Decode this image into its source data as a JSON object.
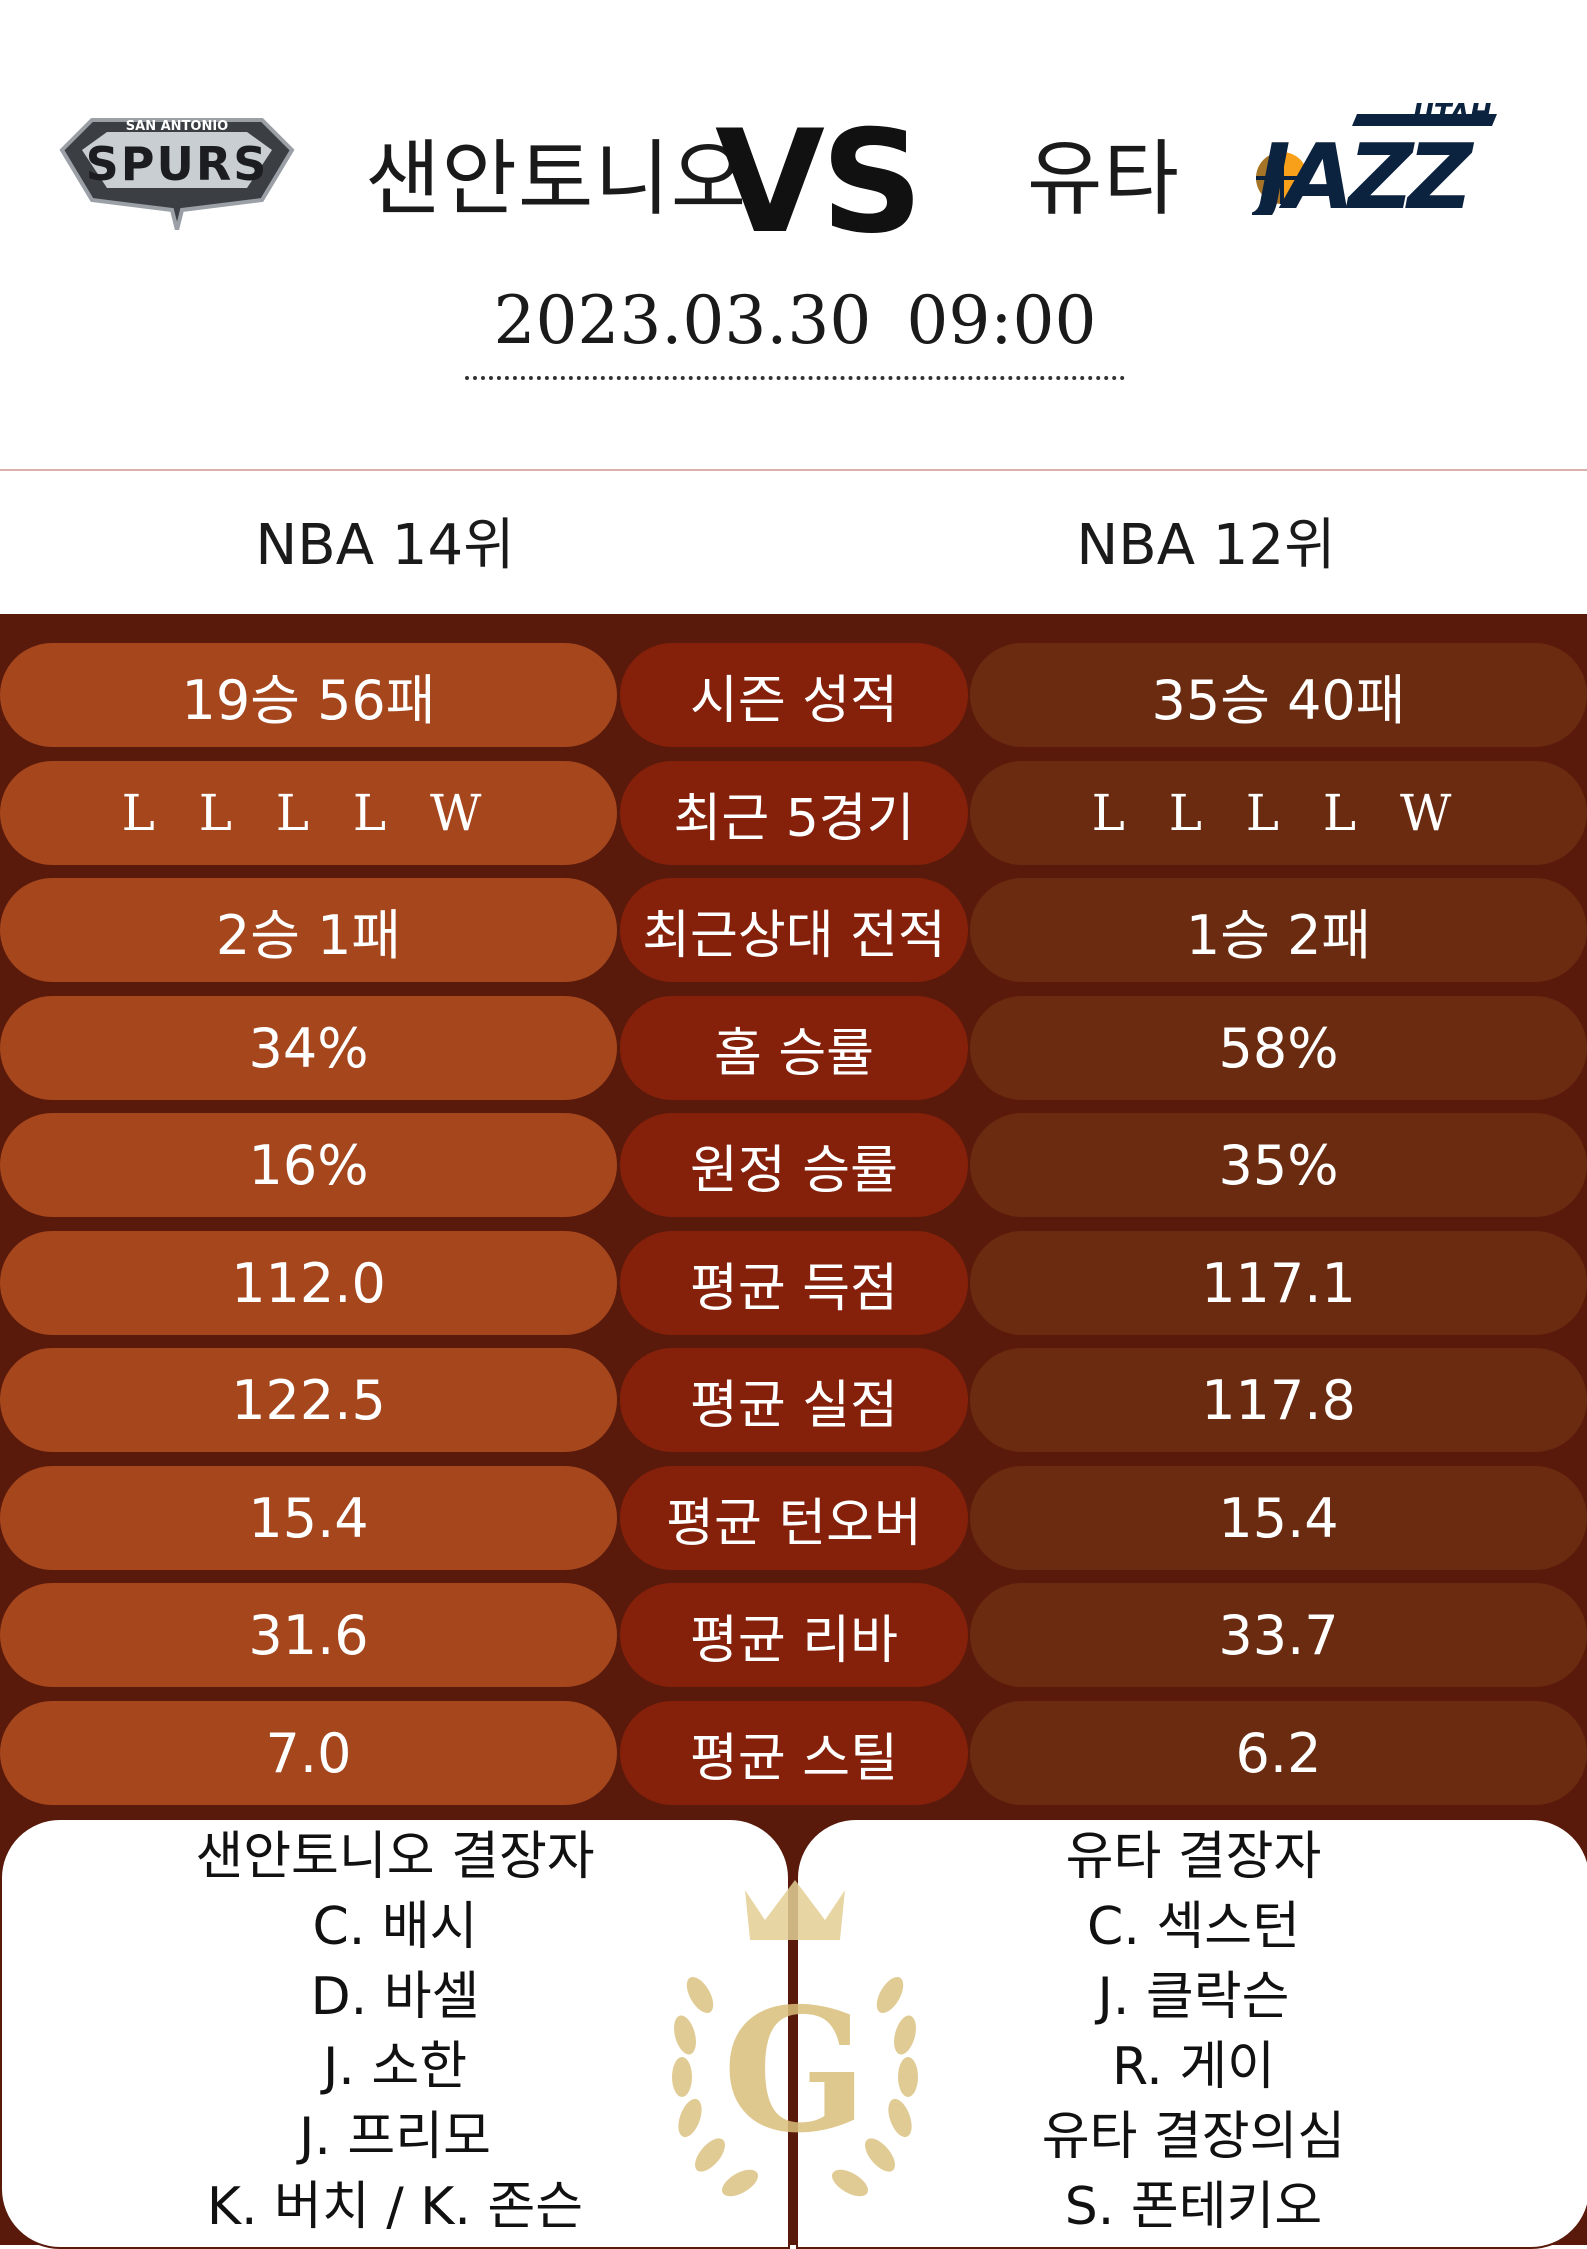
{
  "header": {
    "home_team": "샌안토니오",
    "away_team": "유타",
    "vs_label": "VS",
    "datetime": "2023.03.30  09:00",
    "home_logo": {
      "icon": "spurs-logo",
      "text_top": "SAN ANTONIO",
      "text_main": "SPURS"
    },
    "away_logo": {
      "icon": "jazz-logo",
      "text_top": "UTAH",
      "text_main": "JAZZ"
    }
  },
  "ranks": {
    "home": "NBA 14위",
    "away": "NBA 12위"
  },
  "stats": [
    {
      "label": "시즌 성적",
      "home": "19승 56패",
      "away": "35승 40패"
    },
    {
      "label": "최근 5경기",
      "home": "L L L L W",
      "away": "L L L L W"
    },
    {
      "label": "최근상대 전적",
      "home": "2승 1패",
      "away": "1승 2패"
    },
    {
      "label": "홈 승률",
      "home": "34%",
      "away": "58%"
    },
    {
      "label": "원정 승률",
      "home": "16%",
      "away": "35%"
    },
    {
      "label": "평균 득점",
      "home": "112.0",
      "away": "117.1"
    },
    {
      "label": "평균 실점",
      "home": "122.5",
      "away": "117.8"
    },
    {
      "label": "평균 턴오버",
      "home": "15.4",
      "away": "15.4"
    },
    {
      "label": "평균 리바",
      "home": "31.6",
      "away": "33.7"
    },
    {
      "label": "평균 스틸",
      "home": "7.0",
      "away": "6.2"
    }
  ],
  "injuries": {
    "home": {
      "title": "샌안토니오 결장자",
      "players": [
        "C. 배시",
        "D. 바셀",
        "J. 소한",
        "J. 프리모",
        "K. 버치 / K. 존슨"
      ]
    },
    "away": {
      "title": "유타 결장자",
      "lines": [
        "C. 섹스턴",
        "J. 클락슨",
        "R. 게이",
        "유타 결장의심",
        "S. 폰테키오"
      ]
    }
  },
  "emblem": {
    "icon": "crown-laurel-emblem",
    "letter": "G"
  },
  "colors": {
    "panel_bg": "#5a1a0b",
    "home_pill": "#a5461d",
    "label_pill": "#85200b",
    "away_pill": "#6b2b10",
    "gold": "#d9bf7a"
  }
}
